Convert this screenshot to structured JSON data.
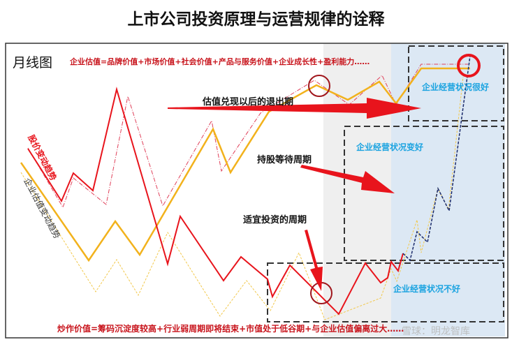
{
  "title": "上市公司投资原理与运营规律的诠释",
  "chart_label": "月线图",
  "valuation_formula": "企业估值=品牌价值+市场价值+社会价值+产品与服务价值+企业成长性+盈利能力……",
  "speculation_formula": "炒作价值=筹码沉淀度较高+行业弱周期即将结束+市值处于低谷期+与企业估值偏离过大……",
  "series_labels": {
    "stock_price": "股价变动趋势",
    "valuation": "企业估值变动趋势"
  },
  "annotations": {
    "exit": "估值兑现以后的退出期",
    "hold": "持股等待周期",
    "invest": "适宜投资的周期"
  },
  "zones": {
    "very_good": "企业经营状况很好",
    "improving": "企业经营状况变好",
    "bad": "企业经营状况不好"
  },
  "watermark": "雪球：明龙智库",
  "colors": {
    "stock_price": "#e8141c",
    "valuation": "#f2b21c",
    "zone_text": "#1aa3e0",
    "highlight_circle": "#a0161c",
    "gray_zone": "#efefef",
    "blue_zone": "#dce8f4"
  }
}
